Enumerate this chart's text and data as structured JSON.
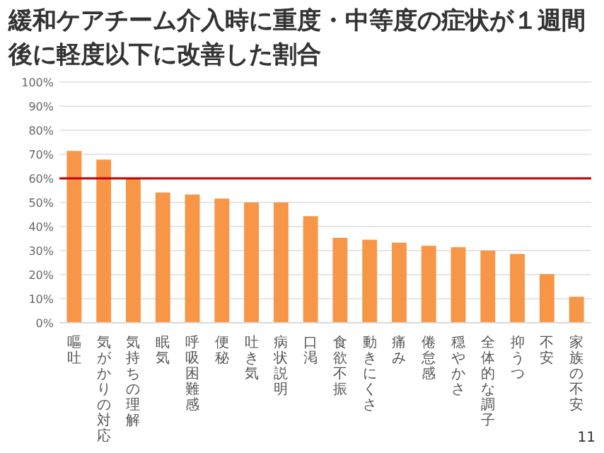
{
  "chart_data": {
    "type": "bar",
    "title": "緩和ケアチーム介入時に重度・中等度の症状が１週間後に軽度以下に改善した割合",
    "categories": [
      "嘔吐",
      "気がかりの対応",
      "気持ちの理解",
      "眠気",
      "呼吸困難感",
      "便秘",
      "吐き気",
      "病状説明",
      "口渇",
      "食欲不振",
      "動きにくさ",
      "痛み",
      "倦怠感",
      "穏やかさ",
      "全体的な調子",
      "抑うつ",
      "不安",
      "家族の不安"
    ],
    "values": [
      71.4,
      67.8,
      60,
      54.1,
      53.3,
      51.6,
      50,
      50,
      44.3,
      35.3,
      34.5,
      33.3,
      32,
      31.4,
      30,
      28.6,
      20.2,
      10.8
    ],
    "color": "#f79646",
    "ylim": [
      0,
      100
    ],
    "yticks": [
      {
        "value": 0,
        "label": "0%"
      },
      {
        "value": 10,
        "label": "10%"
      },
      {
        "value": 20,
        "label": "20%"
      },
      {
        "value": 30,
        "label": "30%"
      },
      {
        "value": 40,
        "label": "40%"
      },
      {
        "value": 50,
        "label": "50%"
      },
      {
        "value": 60,
        "label": "60%"
      },
      {
        "value": 70,
        "label": "70%"
      },
      {
        "value": 80,
        "label": "80%"
      },
      {
        "value": 90,
        "label": "90%"
      },
      {
        "value": 100,
        "label": "100%"
      }
    ],
    "grid": "y",
    "ref_lines": [
      {
        "axis": "y",
        "value": 60,
        "color": "#c00000"
      }
    ],
    "annotations": [
      "11"
    ]
  }
}
